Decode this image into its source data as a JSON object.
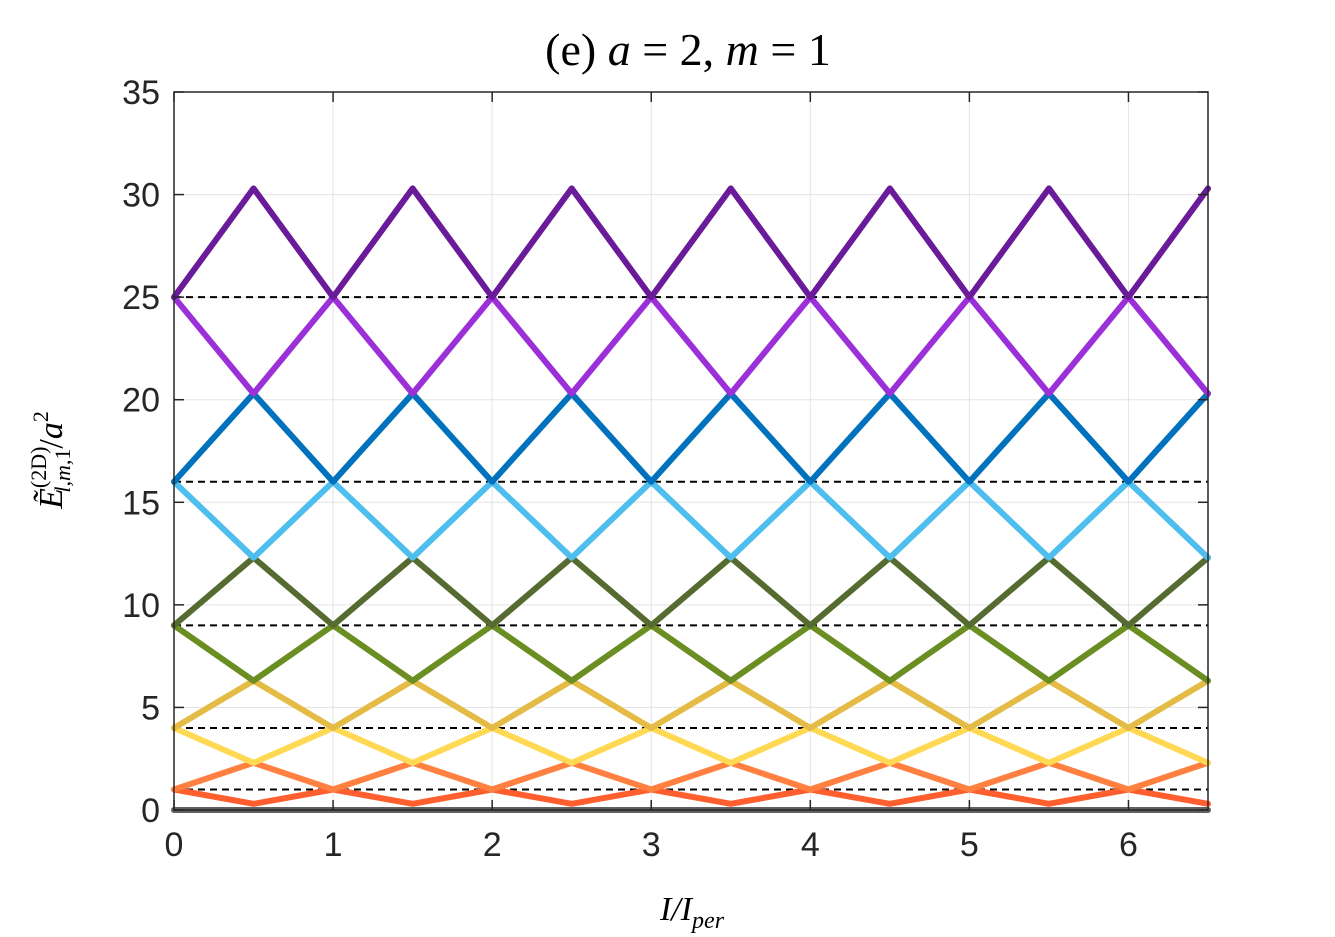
{
  "chart_data": {
    "type": "line",
    "title": "(e) a = 2, m = 1",
    "xlabel": "I/I_per",
    "ylabel": "Ẽ^(2D)_{l,m,1}/a^2",
    "xlim": [
      0,
      6.5
    ],
    "ylim": [
      0,
      35
    ],
    "xticks": [
      0,
      1,
      2,
      3,
      4,
      5,
      6
    ],
    "yticks": [
      0,
      5,
      10,
      15,
      20,
      25,
      30,
      35
    ],
    "grid": true,
    "reference_lines": [
      1,
      4,
      9,
      16,
      25
    ],
    "series": [
      {
        "color": "#616161",
        "x": [
          0,
          6.5
        ],
        "y": [
          0,
          0
        ]
      },
      {
        "color": "#FF5E2E",
        "x": [
          0,
          0.5,
          1,
          1.5,
          2,
          2.5,
          3,
          3.5,
          4,
          4.5,
          5,
          5.5,
          6,
          6.5
        ],
        "y": [
          1,
          0.3,
          1,
          0.3,
          1,
          0.3,
          1,
          0.3,
          1,
          0.3,
          1,
          0.3,
          1,
          0.3
        ]
      },
      {
        "color": "#FF8040",
        "x": [
          0,
          0.5,
          1,
          1.5,
          2,
          2.5,
          3,
          3.5,
          4,
          4.5,
          5,
          5.5,
          6,
          6.5
        ],
        "y": [
          1,
          2.3,
          1,
          2.3,
          1,
          2.3,
          1,
          2.3,
          1,
          2.3,
          1,
          2.3,
          1,
          2.3
        ]
      },
      {
        "color": "#FFD953",
        "x": [
          0,
          0.5,
          1,
          1.5,
          2,
          2.5,
          3,
          3.5,
          4,
          4.5,
          5,
          5.5,
          6,
          6.5
        ],
        "y": [
          4,
          2.3,
          4,
          2.3,
          4,
          2.3,
          4,
          2.3,
          4,
          2.3,
          4,
          2.3,
          4,
          2.3
        ]
      },
      {
        "color": "#E3BB45",
        "x": [
          0,
          0.5,
          1,
          1.5,
          2,
          2.5,
          3,
          3.5,
          4,
          4.5,
          5,
          5.5,
          6,
          6.5
        ],
        "y": [
          4,
          6.3,
          4,
          6.3,
          4,
          6.3,
          4,
          6.3,
          4,
          6.3,
          4,
          6.3,
          4,
          6.3
        ]
      },
      {
        "color": "#6B8E23",
        "x": [
          0,
          0.5,
          1,
          1.5,
          2,
          2.5,
          3,
          3.5,
          4,
          4.5,
          5,
          5.5,
          6,
          6.5
        ],
        "y": [
          9,
          6.3,
          9,
          6.3,
          9,
          6.3,
          9,
          6.3,
          9,
          6.3,
          9,
          6.3,
          9,
          6.3
        ]
      },
      {
        "color": "#556B2F",
        "x": [
          0,
          0.5,
          1,
          1.5,
          2,
          2.5,
          3,
          3.5,
          4,
          4.5,
          5,
          5.5,
          6,
          6.5
        ],
        "y": [
          9,
          12.3,
          9,
          12.3,
          9,
          12.3,
          9,
          12.3,
          9,
          12.3,
          9,
          12.3,
          9,
          12.3
        ]
      },
      {
        "color": "#4DBEEE",
        "x": [
          0,
          0.5,
          1,
          1.5,
          2,
          2.5,
          3,
          3.5,
          4,
          4.5,
          5,
          5.5,
          6,
          6.5
        ],
        "y": [
          16,
          12.3,
          16,
          12.3,
          16,
          12.3,
          16,
          12.3,
          16,
          12.3,
          16,
          12.3,
          16,
          12.3
        ]
      },
      {
        "color": "#0072BD",
        "x": [
          0,
          0.5,
          1,
          1.5,
          2,
          2.5,
          3,
          3.5,
          4,
          4.5,
          5,
          5.5,
          6,
          6.5
        ],
        "y": [
          16,
          20.3,
          16,
          20.3,
          16,
          20.3,
          16,
          20.3,
          16,
          20.3,
          16,
          20.3,
          16,
          20.3
        ]
      },
      {
        "color": "#9B30D9",
        "x": [
          0,
          0.5,
          1,
          1.5,
          2,
          2.5,
          3,
          3.5,
          4,
          4.5,
          5,
          5.5,
          6,
          6.5
        ],
        "y": [
          25,
          20.3,
          25,
          20.3,
          25,
          20.3,
          25,
          20.3,
          25,
          20.3,
          25,
          20.3,
          25,
          20.3
        ]
      },
      {
        "color": "#6A1B9A",
        "x": [
          0,
          0.5,
          1,
          1.5,
          2,
          2.5,
          3,
          3.5,
          4,
          4.5,
          5,
          5.5,
          6,
          6.5
        ],
        "y": [
          25,
          30.3,
          25,
          30.3,
          25,
          30.3,
          25,
          30.3,
          25,
          30.3,
          25,
          30.3,
          25,
          30.3
        ]
      }
    ]
  }
}
